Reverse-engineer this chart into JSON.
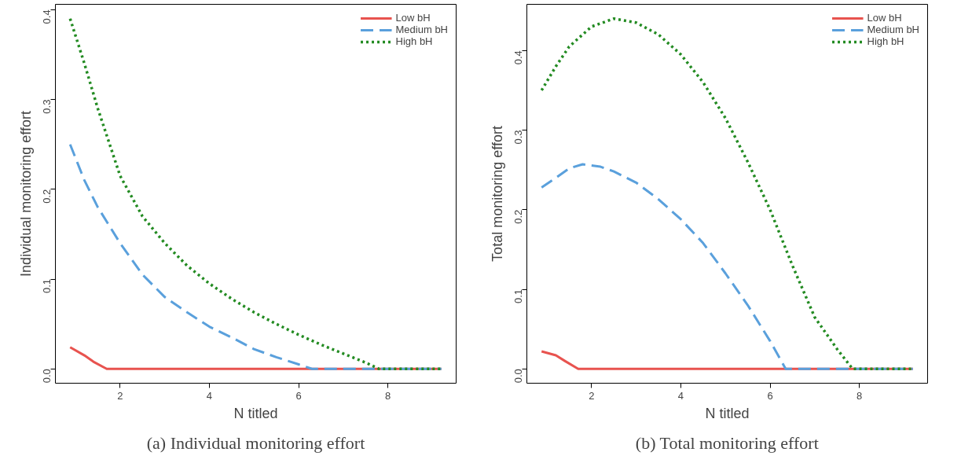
{
  "chart_data": [
    {
      "type": "line",
      "xlabel": "N titled",
      "ylabel": "Individual monitoring effort",
      "annotations": [
        "(a) Individual monitoring effort"
      ],
      "xlim": [
        0.55,
        9.53
      ],
      "ylim": [
        -0.016,
        0.406
      ],
      "xticks": [
        2,
        4,
        6,
        8
      ],
      "yticks": [
        {
          "value": 0,
          "label": "0.0"
        },
        0.1,
        0.2,
        0.3,
        0.4
      ],
      "grid": false,
      "legend": "top right",
      "series": [
        {
          "name": "Low bH",
          "color": "#e8534f",
          "line_style": "solid",
          "x": [
            0.88,
            1.2,
            1.4,
            1.7,
            9.2
          ],
          "values": [
            0.024,
            0.015,
            0.008,
            0,
            0
          ]
        },
        {
          "name": "Medium bH",
          "color": "#5aa0dc",
          "line_style": "dashed",
          "x": [
            0.88,
            1.2,
            1.5,
            2,
            2.5,
            3,
            3.5,
            4,
            4.5,
            5,
            5.5,
            6,
            6.3,
            9.2
          ],
          "values": [
            0.25,
            0.21,
            0.18,
            0.14,
            0.105,
            0.08,
            0.063,
            0.047,
            0.035,
            0.022,
            0.013,
            0.005,
            0,
            0
          ]
        },
        {
          "name": "High bH",
          "color": "#238b22",
          "line_style": "dotted",
          "x": [
            0.88,
            1.2,
            1.5,
            2,
            2.5,
            3,
            3.5,
            4,
            4.5,
            5,
            5.5,
            6,
            6.5,
            7,
            7.5,
            7.8,
            9.2
          ],
          "values": [
            0.39,
            0.34,
            0.29,
            0.215,
            0.17,
            0.14,
            0.115,
            0.095,
            0.078,
            0.063,
            0.05,
            0.038,
            0.027,
            0.017,
            0.007,
            0,
            0
          ]
        }
      ]
    },
    {
      "type": "line",
      "xlabel": "N titled",
      "ylabel": "Total monitoring effort",
      "annotations": [
        "(b) Total monitoring effort"
      ],
      "xlim": [
        0.55,
        9.53
      ],
      "ylim": [
        -0.018,
        0.458
      ],
      "xticks": [
        2,
        4,
        6,
        8
      ],
      "yticks": [
        {
          "value": 0,
          "label": "0.0"
        },
        0.1,
        0.2,
        0.3,
        0.4
      ],
      "grid": false,
      "legend": "top right",
      "series": [
        {
          "name": "Low bH",
          "color": "#e8534f",
          "line_style": "solid",
          "x": [
            0.88,
            1.2,
            1.4,
            1.7,
            9.2
          ],
          "values": [
            0.022,
            0.017,
            0.01,
            0,
            0
          ]
        },
        {
          "name": "Medium bH",
          "color": "#5aa0dc",
          "line_style": "dashed",
          "x": [
            0.88,
            1.2,
            1.5,
            1.8,
            2.2,
            2.5,
            3,
            3.5,
            4,
            4.5,
            5,
            5.5,
            6,
            6.3,
            6.35,
            9.2
          ],
          "values": [
            0.228,
            0.24,
            0.252,
            0.257,
            0.254,
            0.248,
            0.234,
            0.213,
            0.188,
            0.158,
            0.12,
            0.08,
            0.035,
            0.005,
            0,
            0
          ]
        },
        {
          "name": "High bH",
          "color": "#238b22",
          "line_style": "dotted",
          "x": [
            0.88,
            1.2,
            1.5,
            2,
            2.5,
            3,
            3.5,
            4,
            4.5,
            5,
            5.5,
            6,
            6.5,
            7,
            7.5,
            7.85,
            9.2
          ],
          "values": [
            0.35,
            0.38,
            0.405,
            0.43,
            0.44,
            0.435,
            0.42,
            0.395,
            0.36,
            0.315,
            0.26,
            0.2,
            0.13,
            0.065,
            0.025,
            0,
            0
          ]
        }
      ]
    }
  ]
}
